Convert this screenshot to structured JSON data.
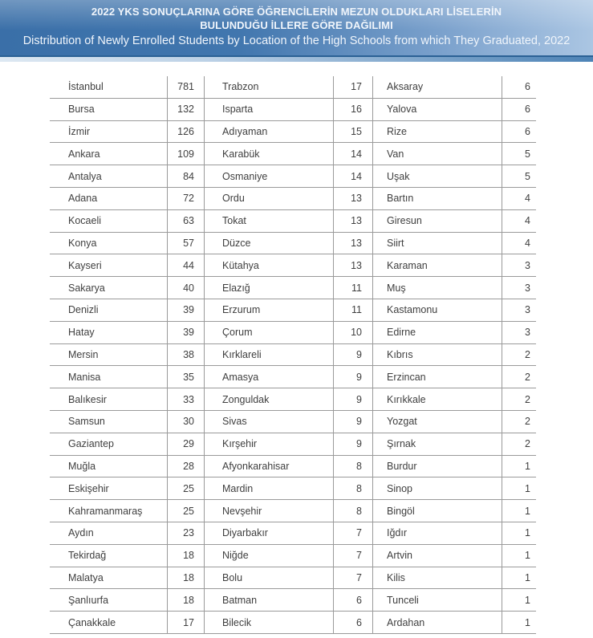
{
  "header": {
    "title_tr_line1": "2022 YKS SONUÇLARINA GÖRE ÖĞRENCİLERİN MEZUN OLDUKLARI LİSELERİN",
    "title_tr_line2": "BULUNDUĞU İLLERE GÖRE DAĞILIMI",
    "title_en": "Distribution of Newly Enrolled Students by Location of the High Schools from which They Graduated, 2022"
  },
  "colors": {
    "banner_left": "#3a6fa8",
    "banner_right": "#abc6e3",
    "banner_rule": "#2b6195",
    "strip_left": "#dde8f2",
    "strip_right": "#4d83b6",
    "table_line": "#9a9a9a",
    "table_text": "#3f3f3f",
    "banner_text": "#f0f5fb"
  },
  "table": {
    "column_groups": [
      {
        "rows": [
          {
            "name": "İstanbul",
            "value": 781
          },
          {
            "name": "Bursa",
            "value": 132
          },
          {
            "name": "İzmir",
            "value": 126
          },
          {
            "name": "Ankara",
            "value": 109
          },
          {
            "name": "Antalya",
            "value": 84
          },
          {
            "name": "Adana",
            "value": 72
          },
          {
            "name": "Kocaeli",
            "value": 63
          },
          {
            "name": "Konya",
            "value": 57
          },
          {
            "name": "Kayseri",
            "value": 44
          },
          {
            "name": "Sakarya",
            "value": 40
          },
          {
            "name": "Denizli",
            "value": 39
          },
          {
            "name": "Hatay",
            "value": 39
          },
          {
            "name": "Mersin",
            "value": 38
          },
          {
            "name": "Manisa",
            "value": 35
          },
          {
            "name": "Balıkesir",
            "value": 33
          },
          {
            "name": "Samsun",
            "value": 30
          },
          {
            "name": "Gaziantep",
            "value": 29
          },
          {
            "name": "Muğla",
            "value": 28
          },
          {
            "name": "Eskişehir",
            "value": 25
          },
          {
            "name": "Kahramanmaraş",
            "value": 25
          },
          {
            "name": "Aydın",
            "value": 23
          },
          {
            "name": "Tekirdağ",
            "value": 18
          },
          {
            "name": "Malatya",
            "value": 18
          },
          {
            "name": "Şanlıurfa",
            "value": 18
          },
          {
            "name": "Çanakkale",
            "value": 17
          }
        ]
      },
      {
        "rows": [
          {
            "name": "Trabzon",
            "value": 17
          },
          {
            "name": "Isparta",
            "value": 16
          },
          {
            "name": "Adıyaman",
            "value": 15
          },
          {
            "name": "Karabük",
            "value": 14
          },
          {
            "name": "Osmaniye",
            "value": 14
          },
          {
            "name": "Ordu",
            "value": 13
          },
          {
            "name": "Tokat",
            "value": 13
          },
          {
            "name": "Düzce",
            "value": 13
          },
          {
            "name": "Kütahya",
            "value": 13
          },
          {
            "name": "Elazığ",
            "value": 11
          },
          {
            "name": "Erzurum",
            "value": 11
          },
          {
            "name": "Çorum",
            "value": 10
          },
          {
            "name": "Kırklareli",
            "value": 9
          },
          {
            "name": "Amasya",
            "value": 9
          },
          {
            "name": "Zonguldak",
            "value": 9
          },
          {
            "name": "Sivas",
            "value": 9
          },
          {
            "name": "Kırşehir",
            "value": 9
          },
          {
            "name": "Afyonkarahisar",
            "value": 8
          },
          {
            "name": "Mardin",
            "value": 8
          },
          {
            "name": "Nevşehir",
            "value": 8
          },
          {
            "name": "Diyarbakır",
            "value": 7
          },
          {
            "name": "Niğde",
            "value": 7
          },
          {
            "name": "Bolu",
            "value": 7
          },
          {
            "name": "Batman",
            "value": 6
          },
          {
            "name": "Bilecik",
            "value": 6
          }
        ]
      },
      {
        "rows": [
          {
            "name": "Aksaray",
            "value": 6
          },
          {
            "name": "Yalova",
            "value": 6
          },
          {
            "name": "Rize",
            "value": 6
          },
          {
            "name": "Van",
            "value": 5
          },
          {
            "name": "Uşak",
            "value": 5
          },
          {
            "name": "Bartın",
            "value": 4
          },
          {
            "name": "Giresun",
            "value": 4
          },
          {
            "name": "Siirt",
            "value": 4
          },
          {
            "name": "Karaman",
            "value": 3
          },
          {
            "name": "Muş",
            "value": 3
          },
          {
            "name": "Kastamonu",
            "value": 3
          },
          {
            "name": "Edirne",
            "value": 3
          },
          {
            "name": "Kıbrıs",
            "value": 2
          },
          {
            "name": "Erzincan",
            "value": 2
          },
          {
            "name": "Kırıkkale",
            "value": 2
          },
          {
            "name": "Yozgat",
            "value": 2
          },
          {
            "name": "Şırnak",
            "value": 2
          },
          {
            "name": "Burdur",
            "value": 1
          },
          {
            "name": "Sinop",
            "value": 1
          },
          {
            "name": "Bingöl",
            "value": 1
          },
          {
            "name": "Iğdır",
            "value": 1
          },
          {
            "name": "Artvin",
            "value": 1
          },
          {
            "name": "Kilis",
            "value": 1
          },
          {
            "name": "Tunceli",
            "value": 1
          },
          {
            "name": "Ardahan",
            "value": 1
          }
        ]
      }
    ]
  }
}
